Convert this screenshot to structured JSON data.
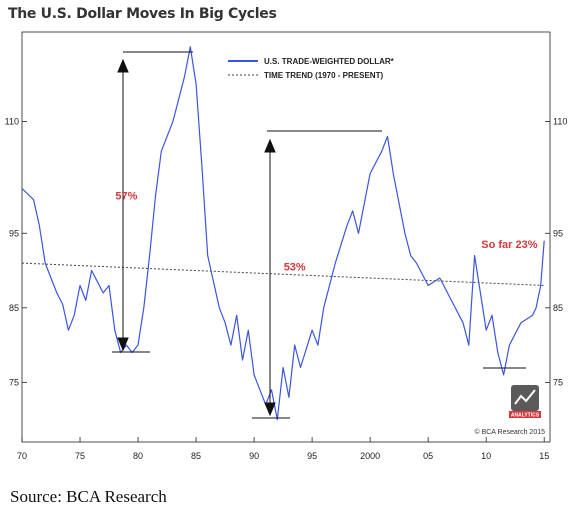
{
  "title": "The U.S. Dollar Moves In Big Cycles",
  "source": "Source: BCA Research",
  "credit": "© BCA Research 2015",
  "logo_text": "ANALYTICS",
  "colors": {
    "series": "#3a55e0",
    "trend": "#444444",
    "annotation": "#d9383a",
    "axis": "#222222",
    "logo": "#d9383a"
  },
  "chart_data": {
    "type": "line",
    "title": "The U.S. Dollar Moves In Big Cycles",
    "xlim": [
      1970,
      2015.5
    ],
    "ylim": [
      67,
      122
    ],
    "x_ticks": [
      1970,
      1975,
      1980,
      1985,
      1990,
      1995,
      2000,
      2005,
      2010,
      2015
    ],
    "x_tick_labels": [
      "70",
      "75",
      "80",
      "85",
      "90",
      "95",
      "2000",
      "05",
      "10",
      "15"
    ],
    "y_ticks": [
      75,
      85,
      95,
      110
    ],
    "y_tick_labels": [
      "75",
      "85",
      "95",
      "110"
    ],
    "grid": false,
    "legend": {
      "placement": "top-center",
      "entries": [
        "U.S. TRADE-WEIGHTED DOLLAR*",
        "TIME TREND (1970 - PRESENT)"
      ]
    },
    "series": [
      {
        "name": "U.S. TRADE-WEIGHTED DOLLAR*",
        "style": "solid",
        "x": [
          1970.0,
          1971.0,
          1971.5,
          1972.0,
          1973.0,
          1973.5,
          1974.0,
          1974.5,
          1975.0,
          1975.5,
          1976.0,
          1976.5,
          1977.0,
          1977.5,
          1978.0,
          1978.5,
          1979.0,
          1979.5,
          1980.0,
          1980.5,
          1981.0,
          1981.5,
          1982.0,
          1983.0,
          1984.0,
          1984.5,
          1985.0,
          1985.5,
          1986.0,
          1987.0,
          1987.5,
          1988.0,
          1988.5,
          1989.0,
          1989.5,
          1990.0,
          1990.5,
          1991.0,
          1991.5,
          1992.0,
          1992.5,
          1993.0,
          1993.5,
          1994.0,
          1995.0,
          1995.5,
          1996.0,
          1997.0,
          1998.0,
          1998.5,
          1999.0,
          2000.0,
          2001.0,
          2001.5,
          2002.0,
          2003.0,
          2003.5,
          2004.0,
          2005.0,
          2006.0,
          2007.0,
          2008.0,
          2008.5,
          2009.0,
          2009.5,
          2010.0,
          2010.5,
          2011.0,
          2011.5,
          2012.0,
          2013.0,
          2014.0,
          2014.3,
          2014.7,
          2015.0
        ],
        "y": [
          101,
          99.5,
          96,
          91,
          87,
          85.5,
          82,
          84,
          88,
          86,
          90,
          88.5,
          87,
          88,
          82,
          79,
          80,
          79,
          80,
          85,
          92,
          100,
          106,
          110,
          116,
          120,
          115,
          104,
          92,
          85,
          83,
          80,
          84,
          78,
          82,
          76,
          74,
          72,
          74,
          70,
          77,
          73,
          80,
          77,
          82,
          80,
          85,
          91,
          96,
          98,
          95,
          103,
          106,
          108,
          103,
          95,
          92,
          91,
          88,
          89,
          86,
          83,
          80,
          92,
          87,
          82,
          84,
          79,
          76,
          80,
          83,
          84,
          85,
          88,
          94
        ]
      },
      {
        "name": "TIME TREND (1970 - PRESENT)",
        "style": "dotted",
        "x": [
          1970,
          2015
        ],
        "y": [
          91,
          88
        ]
      }
    ],
    "annotations": [
      {
        "text": "57%",
        "x": 1979.0,
        "y": 99.5
      },
      {
        "text": "53%",
        "x": 1993.5,
        "y": 90.0
      },
      {
        "text": "So far 23%",
        "x": 2012.0,
        "y": 93.0
      }
    ]
  }
}
